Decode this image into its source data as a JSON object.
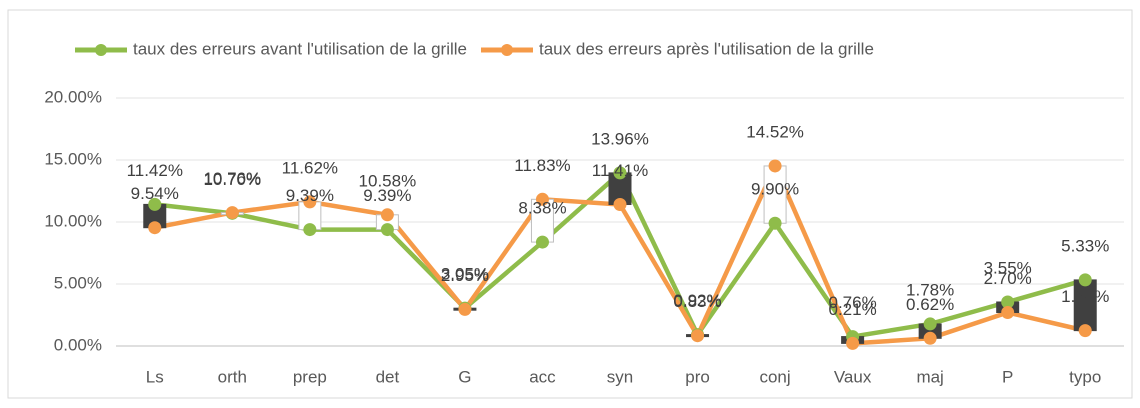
{
  "chart_data": {
    "type": "line",
    "categories": [
      "Ls",
      "orth",
      "prep",
      "det",
      "G",
      "acc",
      "syn",
      "pro",
      "conj",
      "Vaux",
      "maj",
      "P",
      "typo"
    ],
    "series": [
      {
        "name": "taux des erreurs avant l'utilisation de la grille",
        "color": "#8fbc4a",
        "values": [
          11.42,
          10.7,
          9.39,
          9.39,
          3.05,
          8.38,
          13.96,
          0.92,
          9.9,
          0.76,
          1.78,
          3.55,
          5.33
        ],
        "value_labels": [
          "11.42%",
          "10.70%",
          "9.39%",
          "9.39%",
          "3.05%",
          "8.38%",
          "13.96%",
          "0.92%",
          "9.90%",
          "0.76%",
          "1.78%",
          "3.55%",
          "5.33%"
        ]
      },
      {
        "name": "taux des erreurs après l'utilisation de la grille",
        "color": "#f59a48",
        "values": [
          9.54,
          10.76,
          11.62,
          10.58,
          2.95,
          11.83,
          11.41,
          0.83,
          14.52,
          0.21,
          0.62,
          2.7,
          1.24
        ],
        "value_labels": [
          "9.54%",
          "10.76%",
          "11.62%",
          "10.58%",
          "2.95%",
          "11.83%",
          "11.41%",
          "0.83%",
          "14.52%",
          "0.21%",
          "0.62%",
          "2.70%",
          "1.24%"
        ]
      }
    ],
    "up_down_bars": {
      "up_color": "#ffffff",
      "down_color": "#404040"
    },
    "ylim": [
      0,
      20
    ],
    "yticks": [
      {
        "value": 0,
        "label": "0.00%"
      },
      {
        "value": 5,
        "label": "5.00%"
      },
      {
        "value": 10,
        "label": "10.00%"
      },
      {
        "value": 15,
        "label": "15.00%"
      },
      {
        "value": 20,
        "label": "20.00%"
      }
    ],
    "grid": true,
    "legend": "top"
  }
}
